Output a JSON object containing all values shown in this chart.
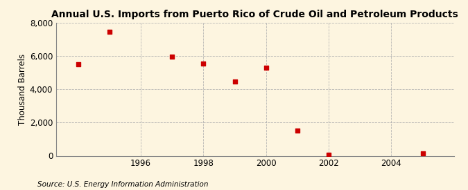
{
  "title": "Annual U.S. Imports from Puerto Rico of Crude Oil and Petroleum Products",
  "ylabel": "Thousand Barrels",
  "source": "Source: U.S. Energy Information Administration",
  "x_values": [
    1994,
    1995,
    1997,
    1998,
    1999,
    2000,
    2001,
    2002,
    2005
  ],
  "y_values": [
    5500,
    7450,
    5950,
    5550,
    4450,
    5300,
    1500,
    75,
    125
  ],
  "marker_color": "#cc0000",
  "marker_size": 4,
  "background_color": "#fdf5e0",
  "grid_color": "#b0b0b0",
  "xlim": [
    1993.3,
    2006.0
  ],
  "ylim": [
    0,
    8000
  ],
  "xticks": [
    1996,
    1998,
    2000,
    2002,
    2004
  ],
  "yticks": [
    0,
    2000,
    4000,
    6000,
    8000
  ],
  "title_fontsize": 10,
  "label_fontsize": 8.5,
  "tick_fontsize": 8.5,
  "source_fontsize": 7.5
}
